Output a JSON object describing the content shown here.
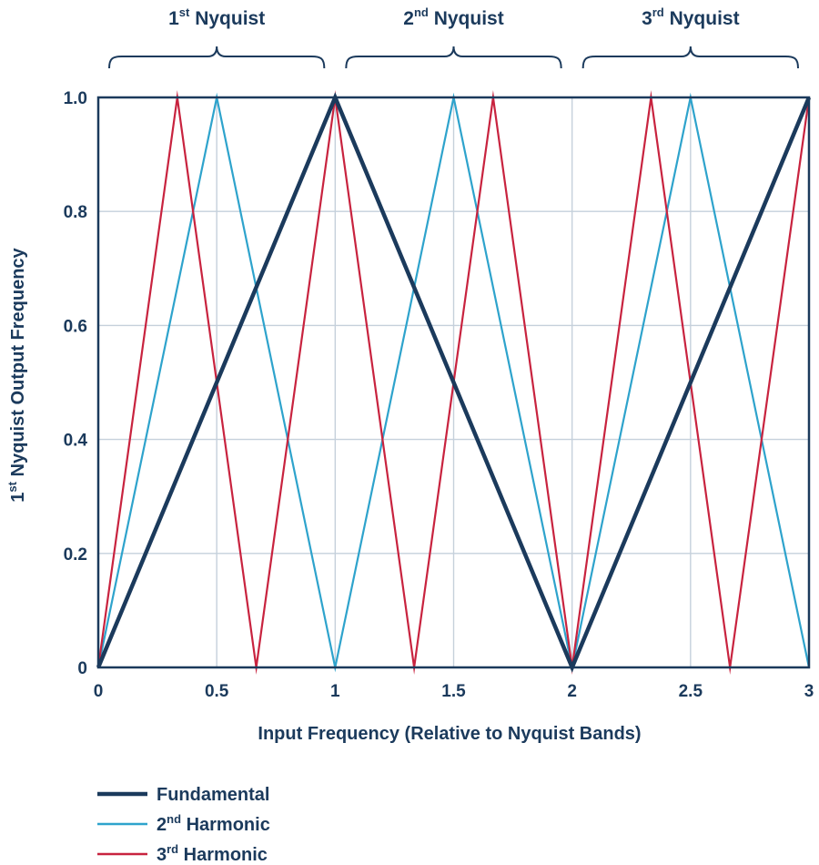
{
  "chart_data": {
    "type": "line",
    "title": "",
    "xlabel": "Input Frequency (Relative to Nyquist Bands)",
    "ylabel": {
      "base": "1",
      "sup": "st",
      "rest": " Nyquist Output Frequency"
    },
    "xlim": [
      0,
      3
    ],
    "ylim": [
      0,
      1.0
    ],
    "x_ticks": [
      {
        "value": 0,
        "label": "0"
      },
      {
        "value": 0.5,
        "label": "0.5"
      },
      {
        "value": 1,
        "label": "1"
      },
      {
        "value": 1.5,
        "label": "1.5"
      },
      {
        "value": 2,
        "label": "2"
      },
      {
        "value": 2.5,
        "label": "2.5"
      },
      {
        "value": 3,
        "label": "3"
      }
    ],
    "y_ticks": [
      {
        "value": 0,
        "label": "0"
      },
      {
        "value": 0.2,
        "label": "0.2"
      },
      {
        "value": 0.4,
        "label": "0.4"
      },
      {
        "value": 0.6,
        "label": "0.6"
      },
      {
        "value": 0.8,
        "label": "0.8"
      },
      {
        "value": 1.0,
        "label": "1.0"
      }
    ],
    "grid": true,
    "legend_position": "bottom-left",
    "nyquist_bands": [
      {
        "num": "1",
        "sup": "st",
        "text": "Nyquist",
        "from": 0,
        "to": 1
      },
      {
        "num": "2",
        "sup": "nd",
        "text": "Nyquist",
        "from": 1,
        "to": 2
      },
      {
        "num": "3",
        "sup": "rd",
        "text": "Nyquist",
        "from": 2,
        "to": 3
      }
    ],
    "series": [
      {
        "name": {
          "base": "Fundamental",
          "sup": "",
          "rest": ""
        },
        "color": "#1b3a5c",
        "width": 4.5,
        "x": [
          0,
          1,
          2,
          3
        ],
        "y": [
          0,
          1,
          0,
          1
        ]
      },
      {
        "name": {
          "base": "2",
          "sup": "nd",
          "rest": " Harmonic"
        },
        "color": "#2ea3cc",
        "width": 2.2,
        "x": [
          0,
          0.5,
          1,
          1.5,
          2,
          2.5,
          3
        ],
        "y": [
          0,
          1,
          0,
          1,
          0,
          1,
          0
        ]
      },
      {
        "name": {
          "base": "3",
          "sup": "rd",
          "rest": " Harmonic"
        },
        "color": "#c8233f",
        "width": 2.2,
        "x": [
          0,
          0.3333,
          0.6667,
          1,
          1.3333,
          1.6667,
          2,
          2.3333,
          2.6667,
          3
        ],
        "y": [
          0,
          1,
          0,
          1,
          0,
          1,
          0,
          1,
          0,
          1
        ]
      }
    ]
  }
}
